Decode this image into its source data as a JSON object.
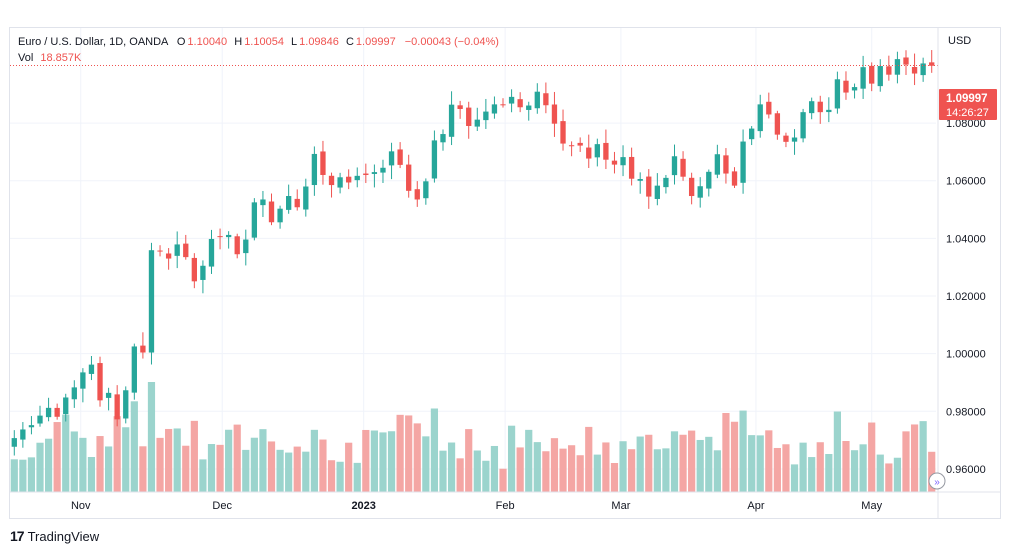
{
  "legend": {
    "symbol": "Euro / U.S. Dollar, 1D, OANDA",
    "o_label": "O",
    "o_value": "1.10040",
    "h_label": "H",
    "h_value": "1.10054",
    "l_label": "L",
    "l_value": "1.09846",
    "c_label": "C",
    "c_value": "1.09997",
    "change": "−0.00043 (−0.04%)",
    "vol_label": "Vol",
    "vol_value": "18.857K"
  },
  "price_axis": {
    "currency": "USD",
    "ticks": [
      "1.08000",
      "1.06000",
      "1.04000",
      "1.02000",
      "1.00000",
      "0.98000",
      "0.96000"
    ],
    "last_price": "1.09997",
    "countdown": "14:26:27"
  },
  "time_axis": {
    "ticks": [
      "Nov",
      "Dec",
      "2023",
      "Feb",
      "Mar",
      "Apr",
      "May"
    ]
  },
  "colors": {
    "up": "#26a69a",
    "down": "#ef5350",
    "vol_up": "#9bd4cd",
    "vol_down": "#f4a6a4",
    "grid": "#f0f3fa",
    "axis_text": "#131722",
    "border": "#e0e3eb"
  },
  "branding": {
    "logo_mark": "17",
    "name": "TradingView"
  },
  "chart_data": {
    "type": "candlestick",
    "title": "Euro / U.S. Dollar, 1D, OANDA",
    "y_axis": {
      "label": "USD",
      "range": [
        0.952,
        1.113
      ]
    },
    "x_axis": {
      "ticks": [
        "Nov",
        "Dec",
        "2023",
        "Feb",
        "Mar",
        "Apr",
        "May"
      ]
    },
    "grid": true,
    "last_close": 1.09997,
    "close_series": [
      0.9707,
      0.9737,
      0.9752,
      0.9785,
      0.9812,
      0.9781,
      0.9848,
      0.9883,
      0.9935,
      0.9962,
      0.9838,
      0.9864,
      0.9772,
      0.9873,
      1.0025,
      1.0004,
      1.0359,
      1.0355,
      1.033,
      1.0379,
      1.0335,
      1.0251,
      1.0305,
      1.0398,
      1.0405,
      1.0412,
      1.0345,
      1.0396,
      1.0525,
      1.0535,
      1.0456,
      1.0503,
      1.0547,
      1.0508,
      1.058,
      1.0693,
      1.062,
      1.0585,
      1.0612,
      1.0594,
      1.0617,
      1.062,
      1.063,
      1.0645,
      1.0702,
      1.0655,
      1.0565,
      1.0535,
      1.0598,
      1.074,
      1.0762,
      1.0864,
      1.0849,
      1.079,
      1.0812,
      1.084,
      1.0865,
      1.0863,
      1.0891,
      1.0855,
      1.0861,
      1.0909,
      1.0862,
      1.0798,
      1.0729,
      1.0722,
      1.0722,
      1.0677,
      1.0727,
      1.0673,
      1.0656,
      1.0682,
      1.0607,
      1.0606,
      1.0545,
      1.0583,
      1.061,
      1.0685,
      1.0614,
      1.0547,
      1.0581,
      1.0631,
      1.0692,
      1.0625,
      1.0583,
      1.0736,
      1.0781,
      1.0865,
      1.083,
      1.076,
      1.0735,
      1.075,
      1.0838,
      1.0876,
      1.0838,
      1.0846,
      1.0952,
      1.0906,
      1.0925,
      1.0994,
      1.0937,
      1.0998,
      1.0968,
      1.1022,
      1.1003,
      1.0972,
      1.1007,
      1.0999
    ],
    "volume_up_color": "#9bd4cd",
    "volume_down_color": "#f4a6a4",
    "volume_last": "18.857K"
  }
}
